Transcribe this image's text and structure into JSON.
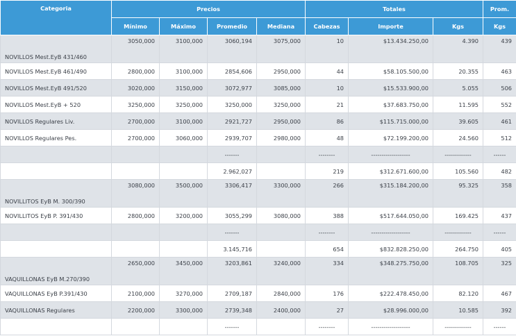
{
  "header": {
    "categoria": "Categoria",
    "precios": "Precios",
    "totales": "Totales",
    "prom": "Prom.",
    "minimo": "Mínimo",
    "maximo": "Máximo",
    "promedio": "Promedio",
    "mediana": "Mediana",
    "cabezas": "Cabezas",
    "importe": "Importe",
    "kgs": "Kgs",
    "prom_kgs": "Kgs"
  },
  "rows": [
    {
      "kind": "data",
      "style": "shade",
      "tall": true,
      "cat": "NOVILLOS Mest.EyB 431/460",
      "min": "3050,000",
      "max": "3100,000",
      "prom": "3060,194",
      "med": "3075,000",
      "cab": "10",
      "imp": "$13.434.250,00",
      "kgs": "4.390",
      "pk": "439"
    },
    {
      "kind": "data",
      "style": "plain",
      "tall": false,
      "cat": "NOVILLOS Mest.EyB 461/490",
      "min": "2800,000",
      "max": "3100,000",
      "prom": "2854,606",
      "med": "2950,000",
      "cab": "44",
      "imp": "$58.105.500,00",
      "kgs": "20.355",
      "pk": "463"
    },
    {
      "kind": "data",
      "style": "shade",
      "tall": false,
      "cat": "NOVILLOS Mest.EyB 491/520",
      "min": "3020,000",
      "max": "3150,000",
      "prom": "3072,977",
      "med": "3085,000",
      "cab": "10",
      "imp": "$15.533.900,00",
      "kgs": "5.055",
      "pk": "506"
    },
    {
      "kind": "data",
      "style": "plain",
      "tall": false,
      "cat": "NOVILLOS Mest.EyB + 520",
      "min": "3250,000",
      "max": "3250,000",
      "prom": "3250,000",
      "med": "3250,000",
      "cab": "21",
      "imp": "$37.683.750,00",
      "kgs": "11.595",
      "pk": "552"
    },
    {
      "kind": "data",
      "style": "shade",
      "tall": false,
      "cat": "NOVILLOS Regulares Liv.",
      "min": "2700,000",
      "max": "3100,000",
      "prom": "2921,727",
      "med": "2950,000",
      "cab": "86",
      "imp": "$115.715.000,00",
      "kgs": "39.605",
      "pk": "461"
    },
    {
      "kind": "data",
      "style": "plain",
      "tall": false,
      "cat": "NOVILLOS Regulares Pes.",
      "min": "2700,000",
      "max": "3060,000",
      "prom": "2939,707",
      "med": "2980,000",
      "cab": "48",
      "imp": "$72.199.200,00",
      "kgs": "24.560",
      "pk": "512"
    },
    {
      "kind": "sep",
      "style": "shade",
      "tall": false,
      "cat": "",
      "min": "",
      "max": "",
      "prom": "-------",
      "med": "",
      "cab": "--------",
      "imp": "-------------------",
      "kgs": "-------------",
      "pk": "------"
    },
    {
      "kind": "total",
      "style": "plain",
      "tall": false,
      "cat": "",
      "min": "",
      "max": "",
      "prom": "2.962,027",
      "med": "",
      "cab": "219",
      "imp": "$312.671.600,00",
      "kgs": "105.560",
      "pk": "482"
    },
    {
      "kind": "data",
      "style": "shade",
      "tall": true,
      "cat": "NOVILLITOS EyB M. 300/390",
      "min": "3080,000",
      "max": "3500,000",
      "prom": "3306,417",
      "med": "3300,000",
      "cab": "266",
      "imp": "$315.184.200,00",
      "kgs": "95.325",
      "pk": "358"
    },
    {
      "kind": "data",
      "style": "plain",
      "tall": false,
      "cat": "NOVILLITOS EyB P. 391/430",
      "min": "2800,000",
      "max": "3200,000",
      "prom": "3055,299",
      "med": "3080,000",
      "cab": "388",
      "imp": "$517.644.050,00",
      "kgs": "169.425",
      "pk": "437"
    },
    {
      "kind": "sep",
      "style": "shade",
      "tall": false,
      "cat": "",
      "min": "",
      "max": "",
      "prom": "-------",
      "med": "",
      "cab": "--------",
      "imp": "-------------------",
      "kgs": "-------------",
      "pk": "------"
    },
    {
      "kind": "total",
      "style": "plain",
      "tall": false,
      "cat": "",
      "min": "",
      "max": "",
      "prom": "3.145,716",
      "med": "",
      "cab": "654",
      "imp": "$832.828.250,00",
      "kgs": "264.750",
      "pk": "405"
    },
    {
      "kind": "data",
      "style": "shade",
      "tall": true,
      "cat": "VAQUILLONAS EyB M.270/390",
      "min": "2650,000",
      "max": "3450,000",
      "prom": "3203,861",
      "med": "3240,000",
      "cab": "334",
      "imp": "$348.275.750,00",
      "kgs": "108.705",
      "pk": "325"
    },
    {
      "kind": "data",
      "style": "plain",
      "tall": false,
      "cat": "VAQUILLONAS EyB P.391/430",
      "min": "2100,000",
      "max": "3270,000",
      "prom": "2709,187",
      "med": "2840,000",
      "cab": "176",
      "imp": "$222.478.450,00",
      "kgs": "82.120",
      "pk": "467"
    },
    {
      "kind": "data",
      "style": "shade",
      "tall": false,
      "cat": "VAQUILLONAS Regulares",
      "min": "2200,000",
      "max": "3300,000",
      "prom": "2739,348",
      "med": "2400,000",
      "cab": "27",
      "imp": "$28.996.000,00",
      "kgs": "10.585",
      "pk": "392"
    },
    {
      "kind": "sep",
      "style": "plain",
      "tall": false,
      "cat": "",
      "min": "",
      "max": "",
      "prom": "-------",
      "med": "",
      "cab": "--------",
      "imp": "-------------------",
      "kgs": "-------------",
      "pk": "------"
    }
  ]
}
